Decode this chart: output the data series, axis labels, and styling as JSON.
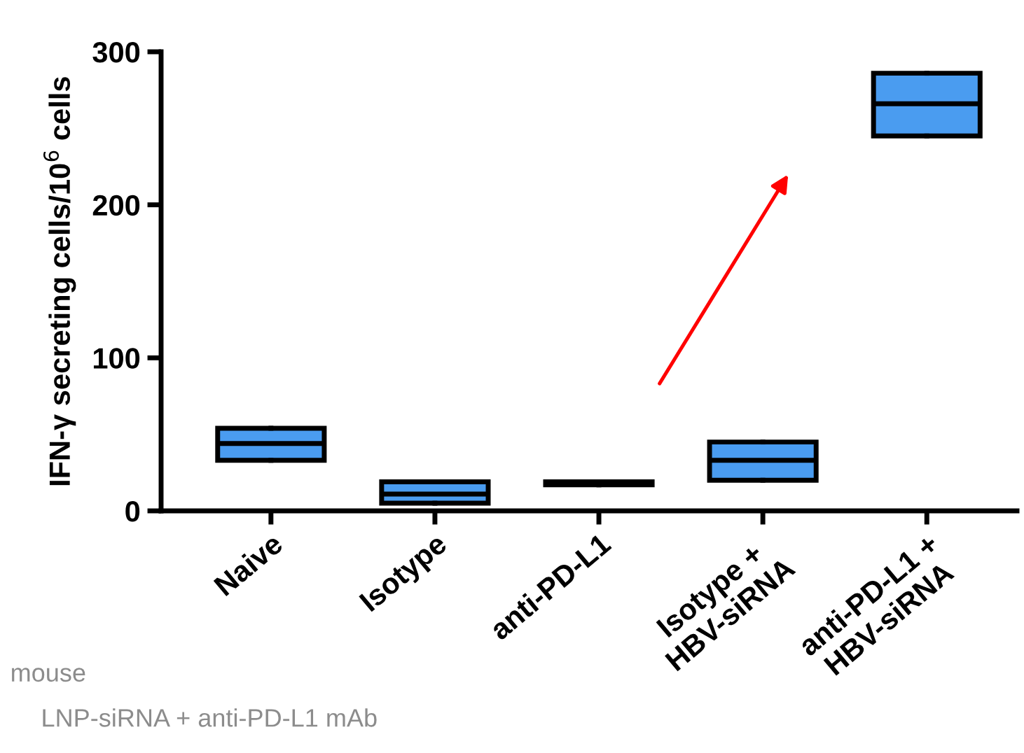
{
  "chart_data": {
    "type": "box",
    "ylabel": "IFN-γ secreting cells/10$^{6}$ cells",
    "categories": [
      "Naive",
      "Isotype",
      "anti-PD-L1",
      "Isotype +\nHBV-siRNA",
      "anti-PD-L1 +\nHBV-siRNA"
    ],
    "boxes": [
      {
        "low": 33,
        "q1": 33,
        "median": 44,
        "q3": 54,
        "high": 54
      },
      {
        "low": 5,
        "q1": 5,
        "median": 11,
        "q3": 19,
        "high": 19
      },
      {
        "low": 17,
        "q1": 17,
        "median": 18,
        "q3": 19,
        "high": 19
      },
      {
        "low": 20,
        "q1": 20,
        "median": 33,
        "q3": 45,
        "high": 45
      },
      {
        "low": 245,
        "q1": 245,
        "median": 266,
        "q3": 286,
        "high": 286
      }
    ],
    "color": "#4a9cf0",
    "ylim": [
      0,
      300
    ],
    "yticks": [
      0,
      100,
      200,
      300
    ],
    "grid": false,
    "annotations": [
      "mouse",
      "LNP-siRNA + anti-PD-L1 mAb"
    ]
  }
}
